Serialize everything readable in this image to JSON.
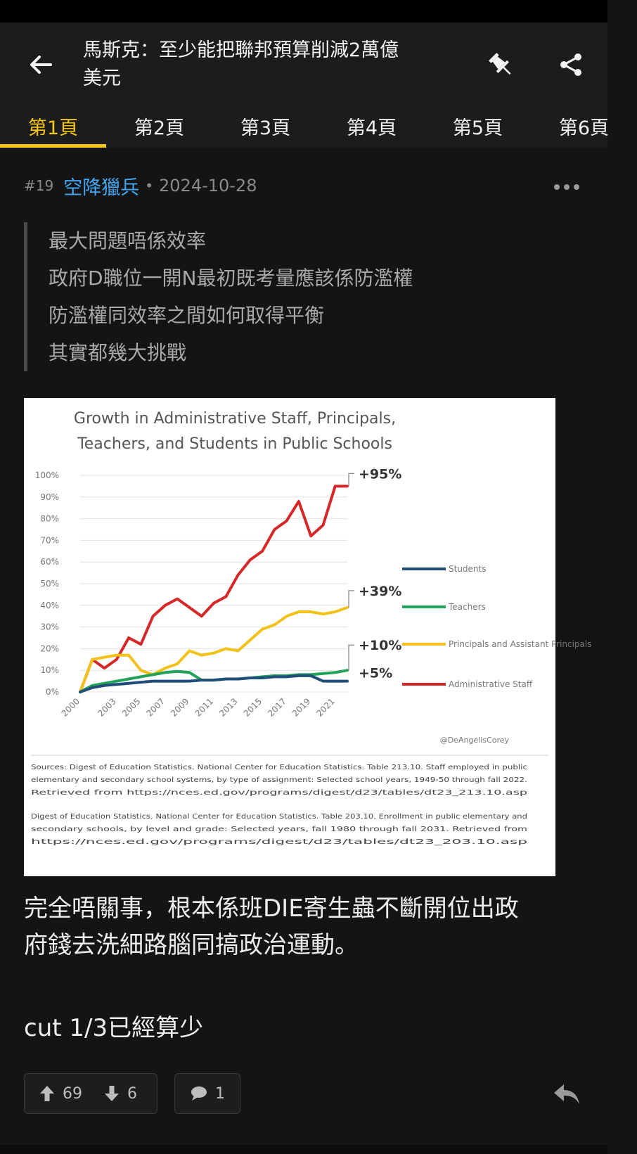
{
  "thread": {
    "title_line1": "馬斯克：至少能把聯邦預算削減2萬億",
    "title_line2": "美元"
  },
  "tabs": [
    "第1頁",
    "第2頁",
    "第3頁",
    "第4頁",
    "第5頁",
    "第6頁"
  ],
  "post": {
    "floor": "#19",
    "username": "空降獵兵",
    "separator": "•",
    "date": "2024-10-28",
    "quote": [
      "最大問題唔係效率",
      "政府D職位一開N最初既考量應該係防濫權",
      "防濫權同效率之間如何取得平衡",
      "其實都幾大挑戰"
    ],
    "body": [
      "完全唔關事，根本係班DIE寄生蟲不斷開位出政",
      "府錢去洗細路腦同搞政治運動。"
    ],
    "body2": "cut 1/3已經算少",
    "upvotes": "69",
    "downvotes": "6",
    "comments": "1"
  },
  "colors": {
    "accent": "#f5c518",
    "username": "#41a8f5",
    "students": "#1f4e79",
    "teachers": "#22a35a",
    "principals": "#f2c21b",
    "admin": "#d62828"
  },
  "chart_data": {
    "type": "line",
    "title": [
      "Growth in Administrative Staff, Principals,",
      "Teachers, and Students in Public Schools"
    ],
    "x": [
      2000,
      2001,
      2002,
      2003,
      2004,
      2005,
      2006,
      2007,
      2008,
      2009,
      2010,
      2011,
      2012,
      2013,
      2014,
      2015,
      2016,
      2017,
      2018,
      2019,
      2020,
      2021,
      2022
    ],
    "x_tick_labels": [
      "2000",
      "2003",
      "2005",
      "2007",
      "2009",
      "2011",
      "2013",
      "2015",
      "2017",
      "2019",
      "2021"
    ],
    "y_tick_labels": [
      "0%",
      "10%",
      "20%",
      "30%",
      "40%",
      "50%",
      "60%",
      "70%",
      "80%",
      "90%",
      "100%"
    ],
    "ylim": [
      0,
      100
    ],
    "series": [
      {
        "name": "Students",
        "values": [
          0,
          2,
          3,
          3.5,
          4,
          4.5,
          5,
          5,
          5,
          5,
          5.5,
          5.5,
          6,
          6,
          6.5,
          6.5,
          7,
          7,
          7.5,
          7.5,
          5,
          5,
          5
        ]
      },
      {
        "name": "Teachers",
        "values": [
          0,
          3,
          4,
          5,
          6,
          7,
          8,
          9,
          9.5,
          9,
          5.5,
          5.5,
          6,
          6,
          6.5,
          7,
          7.5,
          7.5,
          8,
          8,
          8.5,
          9,
          10
        ]
      },
      {
        "name": "Principals and Assistant Principals",
        "values": [
          0,
          15,
          16,
          17,
          17,
          10,
          8,
          11,
          13,
          19,
          17,
          18,
          20,
          19,
          24,
          29,
          31,
          35,
          37,
          37,
          36,
          37,
          39
        ]
      },
      {
        "name": "Administrative Staff",
        "values": [
          0,
          15,
          11,
          15,
          25,
          22,
          35,
          40,
          43,
          39,
          35,
          41,
          44,
          54,
          61,
          65,
          75,
          79,
          88,
          72,
          77,
          95,
          95
        ]
      }
    ],
    "end_labels": [
      "+5%",
      "+10%",
      "+39%",
      "+95%"
    ],
    "credit": "@DeAngelisCorey",
    "sources": [
      "Sources: Digest of Education Statistics. National Center for Education Statistics. Table 213.10. Staff employed in public",
      "elementary and secondary school systems, by type of assignment: Selected school years, 1949-50 through fall 2022.",
      "Retrieved from https://nces.ed.gov/programs/digest/d23/tables/dt23_213.10.asp",
      "Digest of Education Statistics. National Center for Education Statistics. Table 203.10. Enrollment in public elementary and",
      "secondary schools, by level and grade: Selected years, fall 1980 through fall 2031. Retrieved from",
      "https://nces.ed.gov/programs/digest/d23/tables/dt23_203.10.asp"
    ]
  }
}
